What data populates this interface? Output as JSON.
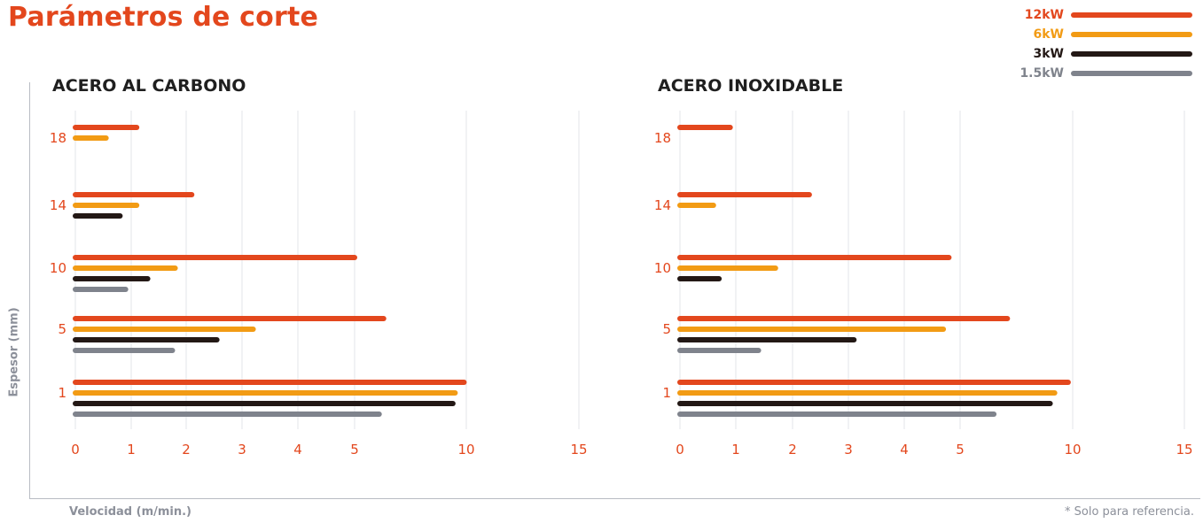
{
  "title": "Parámetros de corte",
  "legend": [
    {
      "label": "12kW",
      "color": "#e3471d",
      "text_color": "#e3471d"
    },
    {
      "label": "6kW",
      "color": "#f29b14",
      "text_color": "#f29b14"
    },
    {
      "label": "3kW",
      "color": "#231815",
      "text_color": "#231815"
    },
    {
      "label": "1.5kW",
      "color": "#7f838c",
      "text_color": "#7f838c"
    }
  ],
  "y_axis_label": "Espesor (mm)",
  "x_axis_label": "Velocidad (m/min.)",
  "footnote": "* Solo para referencia.",
  "chart_data": [
    {
      "type": "bar",
      "orientation": "horizontal",
      "title": "ACERO AL CARBONO",
      "xlabel": "Velocidad (m/min.)",
      "ylabel": "Espesor (mm)",
      "x_ticks": [
        "0",
        "1",
        "2",
        "3",
        "4",
        "5",
        "10",
        "15"
      ],
      "x_tick_values": [
        0,
        1,
        2,
        3,
        4,
        5,
        10,
        15
      ],
      "categories": [
        "18",
        "14",
        "10",
        "5",
        "1"
      ],
      "series": [
        {
          "name": "12kW",
          "values": [
            1.1,
            2.1,
            5.0,
            6.3,
            9.9
          ]
        },
        {
          "name": "6kW",
          "values": [
            0.55,
            1.1,
            1.8,
            3.2,
            9.5
          ]
        },
        {
          "name": "3kW",
          "values": [
            null,
            0.8,
            1.3,
            2.55,
            9.4
          ]
        },
        {
          "name": "1.5kW",
          "values": [
            null,
            null,
            0.9,
            1.75,
            6.1
          ]
        }
      ]
    },
    {
      "type": "bar",
      "orientation": "horizontal",
      "title": "ACERO INOXIDABLE",
      "xlabel": "Velocidad (m/min.)",
      "ylabel": "Espesor (mm)",
      "x_ticks": [
        "0",
        "1",
        "2",
        "3",
        "4",
        "5",
        "10",
        "15"
      ],
      "x_tick_values": [
        0,
        1,
        2,
        3,
        4,
        5,
        10,
        15
      ],
      "categories": [
        "18",
        "14",
        "10",
        "5",
        "1"
      ],
      "series": [
        {
          "name": "12kW",
          "values": [
            0.9,
            2.3,
            4.8,
            7.1,
            9.8
          ]
        },
        {
          "name": "6kW",
          "values": [
            null,
            0.6,
            1.7,
            4.7,
            9.2
          ]
        },
        {
          "name": "3kW",
          "values": [
            null,
            null,
            0.7,
            3.1,
            9.0
          ]
        },
        {
          "name": "1.5kW",
          "values": [
            null,
            null,
            null,
            1.4,
            6.5
          ]
        }
      ]
    }
  ]
}
